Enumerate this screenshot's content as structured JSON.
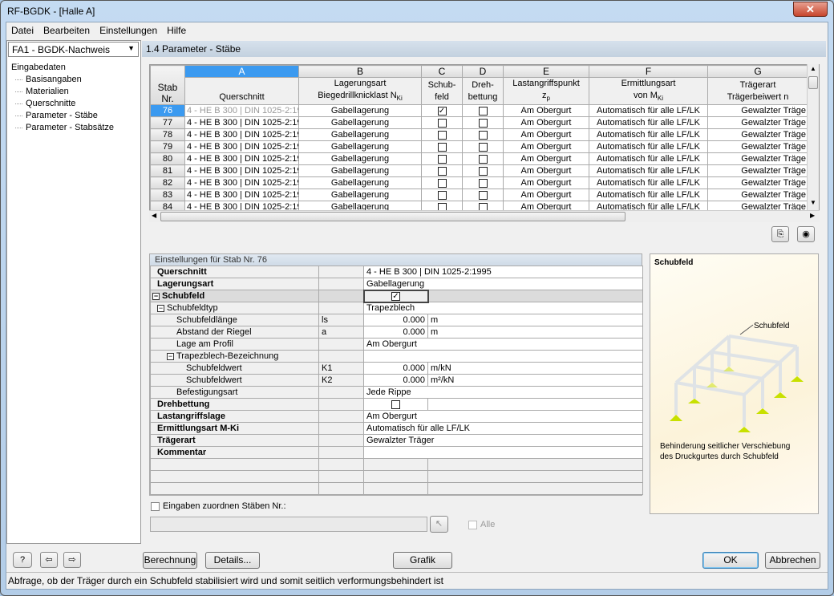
{
  "window": {
    "title": "RF-BGDK - [Halle A]",
    "close": "✕"
  },
  "menu": [
    "Datei",
    "Bearbeiten",
    "Einstellungen",
    "Hilfe"
  ],
  "case_select": "FA1 - BGDK-Nachweis",
  "tree": {
    "root": "Eingabedaten",
    "items": [
      "Basisangaben",
      "Materialien",
      "Querschnitte",
      "Parameter - Stäbe",
      "Parameter - Stabsätze"
    ]
  },
  "section_title": "1.4 Parameter - Stäbe",
  "grid": {
    "letters": [
      "A",
      "B",
      "C",
      "D",
      "E",
      "F",
      "G"
    ],
    "headers": [
      "Stab\nNr.",
      "\nQuerschnitt",
      "Lagerungsart\nBiegedrillknicklast N_Ki",
      "Schub-\nfeld",
      "Dreh-\nbettung",
      "Lastangriffspunkt\nz_p",
      "Ermittlungsart\nvon M_Ki",
      "Trägerart\nTrägerbeiwert n"
    ],
    "rows": [
      {
        "nr": "76",
        "qs": "4 - HE B 300 | DIN 1025-2:19",
        "lager": "Gabellagerung",
        "schub": true,
        "dreh": false,
        "last": "Am Obergurt",
        "ermitt": "Automatisch für alle LF/LK",
        "traeger": "Gewalzter Träge"
      },
      {
        "nr": "77",
        "qs": "4 - HE B 300 | DIN 1025-2:19",
        "lager": "Gabellagerung",
        "schub": false,
        "dreh": false,
        "last": "Am Obergurt",
        "ermitt": "Automatisch für alle LF/LK",
        "traeger": "Gewalzter Träge"
      },
      {
        "nr": "78",
        "qs": "4 - HE B 300 | DIN 1025-2:19",
        "lager": "Gabellagerung",
        "schub": false,
        "dreh": false,
        "last": "Am Obergurt",
        "ermitt": "Automatisch für alle LF/LK",
        "traeger": "Gewalzter Träge"
      },
      {
        "nr": "79",
        "qs": "4 - HE B 300 | DIN 1025-2:19",
        "lager": "Gabellagerung",
        "schub": false,
        "dreh": false,
        "last": "Am Obergurt",
        "ermitt": "Automatisch für alle LF/LK",
        "traeger": "Gewalzter Träge"
      },
      {
        "nr": "80",
        "qs": "4 - HE B 300 | DIN 1025-2:19",
        "lager": "Gabellagerung",
        "schub": false,
        "dreh": false,
        "last": "Am Obergurt",
        "ermitt": "Automatisch für alle LF/LK",
        "traeger": "Gewalzter Träge"
      },
      {
        "nr": "81",
        "qs": "4 - HE B 300 | DIN 1025-2:19",
        "lager": "Gabellagerung",
        "schub": false,
        "dreh": false,
        "last": "Am Obergurt",
        "ermitt": "Automatisch für alle LF/LK",
        "traeger": "Gewalzter Träge"
      },
      {
        "nr": "82",
        "qs": "4 - HE B 300 | DIN 1025-2:19",
        "lager": "Gabellagerung",
        "schub": false,
        "dreh": false,
        "last": "Am Obergurt",
        "ermitt": "Automatisch für alle LF/LK",
        "traeger": "Gewalzter Träge"
      },
      {
        "nr": "83",
        "qs": "4 - HE B 300 | DIN 1025-2:19",
        "lager": "Gabellagerung",
        "schub": false,
        "dreh": false,
        "last": "Am Obergurt",
        "ermitt": "Automatisch für alle LF/LK",
        "traeger": "Gewalzter Träge"
      },
      {
        "nr": "84",
        "qs": "4 - HE B 300 | DIN 1025-2:19",
        "lager": "Gabellagerung",
        "schub": false,
        "dreh": false,
        "last": "Am Obergurt",
        "ermitt": "Automatisch für alle LF/LK",
        "traeger": "Gewalzter Träge"
      }
    ]
  },
  "settings": {
    "title": "Einstellungen für Stab Nr. 76",
    "rows": [
      {
        "label": "Querschnitt",
        "bold": true,
        "indent": 0,
        "value": "4 - HE B 300 | DIN 1025-2:1995"
      },
      {
        "label": "Lagerungsart",
        "bold": true,
        "indent": 0,
        "value": "Gabellagerung"
      },
      {
        "label": "Schubfeld",
        "bold": true,
        "indent": 0,
        "expander": true,
        "checkbox": true,
        "checked": true,
        "shade": true
      },
      {
        "label": "Schubfeldtyp",
        "indent": 1,
        "expander": true,
        "value": "Trapezblech"
      },
      {
        "label": "Schubfeldlänge",
        "indent": 2,
        "symbol": "ls",
        "value": "0.000",
        "numeric": true,
        "unit": "m"
      },
      {
        "label": "Abstand der Riegel",
        "indent": 2,
        "symbol": "a",
        "value": "0.000",
        "numeric": true,
        "unit": "m"
      },
      {
        "label": "Lage am Profil",
        "indent": 2,
        "value": "Am Obergurt"
      },
      {
        "label": "Trapezblech-Bezeichnung",
        "indent": 2,
        "expander": true,
        "value": ""
      },
      {
        "label": "Schubfeldwert",
        "indent": 3,
        "symbol": "K1",
        "value": "0.000",
        "numeric": true,
        "unit": "m/kN"
      },
      {
        "label": "Schubfeldwert",
        "indent": 3,
        "symbol": "K2",
        "value": "0.000",
        "numeric": true,
        "unit": "m²/kN"
      },
      {
        "label": "Befestigungsart",
        "indent": 2,
        "value": "Jede Rippe"
      },
      {
        "label": "Drehbettung",
        "bold": true,
        "indent": 0,
        "checkbox": true,
        "checked": false
      },
      {
        "label": "Lastangriffslage",
        "bold": true,
        "indent": 0,
        "value": "Am Obergurt"
      },
      {
        "label": "Ermittlungsart  M-Ki",
        "bold": true,
        "indent": 0,
        "value": "Automatisch für alle LF/LK"
      },
      {
        "label": "Trägerart",
        "bold": true,
        "indent": 0,
        "value": "Gewalzter Träger"
      },
      {
        "label": "Kommentar",
        "bold": true,
        "indent": 0,
        "value": ""
      }
    ],
    "assign_label": "Eingaben zuordnen Stäben Nr.:",
    "assign_value": "",
    "all_label": "Alle"
  },
  "preview": {
    "title": "Schubfeld",
    "callout": "Schubfeld",
    "caption": "Behinderung seitlicher Verschiebung\ndes Druckgurtes durch Schubfeld"
  },
  "buttons": {
    "calc": "Berechnung",
    "details": "Details...",
    "graphic": "Grafik",
    "ok": "OK",
    "cancel": "Abbrechen"
  },
  "status": "Abfrage, ob der Träger durch ein Schubfeld stabilisiert wird und somit seitlich verformungsbehindert ist",
  "colors": {
    "selection": "#3b9af0",
    "support": "#c8e000"
  }
}
